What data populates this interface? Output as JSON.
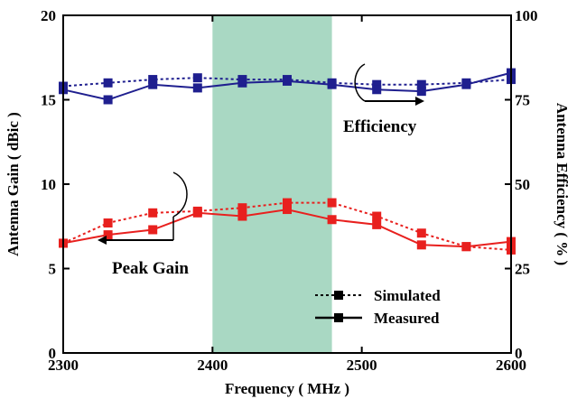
{
  "chart_data": {
    "type": "line",
    "xlabel": "Frequency ( MHz )",
    "ylabel_left": "Antenna Gain ( dBic )",
    "ylabel_right": "Antenna Efficiency ( % )",
    "xlim": [
      2300,
      2600
    ],
    "ylim_left": [
      0,
      20
    ],
    "ylim_right": [
      0,
      100
    ],
    "x_ticks": [
      "2300",
      "2400",
      "2500",
      "2600"
    ],
    "y_ticks_left": [
      "0",
      "5",
      "10",
      "15",
      "20"
    ],
    "y_ticks_right": [
      "0",
      "25",
      "50",
      "75",
      "100"
    ],
    "shaded_band": {
      "from": 2400,
      "to": 2480,
      "color": "#a9d8c3"
    },
    "x": [
      2300,
      2330,
      2360,
      2390,
      2420,
      2450,
      2480,
      2510,
      2540,
      2570,
      2600
    ],
    "series": [
      {
        "name": "Simulated",
        "quantity": "Efficiency",
        "axis": "right",
        "style": "dotted",
        "color": "#1f1f8f",
        "values": [
          79,
          80,
          81,
          81.5,
          81,
          81,
          80,
          79.5,
          79.5,
          80,
          81
        ]
      },
      {
        "name": "Measured",
        "quantity": "Efficiency",
        "axis": "right",
        "style": "solid",
        "color": "#1f1f8f",
        "values": [
          78,
          75,
          79.5,
          78.5,
          80,
          80.5,
          79.5,
          78,
          77.5,
          79.5,
          83
        ]
      },
      {
        "name": "Simulated",
        "quantity": "Peak Gain",
        "axis": "left",
        "style": "dotted",
        "color": "#e8201e",
        "values": [
          6.5,
          7.7,
          8.3,
          8.4,
          8.6,
          8.9,
          8.9,
          8.1,
          7.1,
          6.3,
          6.1
        ]
      },
      {
        "name": "Measured",
        "quantity": "Peak Gain",
        "axis": "left",
        "style": "solid",
        "color": "#e8201e",
        "values": [
          6.5,
          7.0,
          7.3,
          8.3,
          8.1,
          8.5,
          7.9,
          7.6,
          6.4,
          6.3,
          6.6
        ]
      }
    ],
    "annotations": [
      "Efficiency",
      "Peak Gain"
    ],
    "legend": [
      "Simulated",
      "Measured"
    ]
  }
}
